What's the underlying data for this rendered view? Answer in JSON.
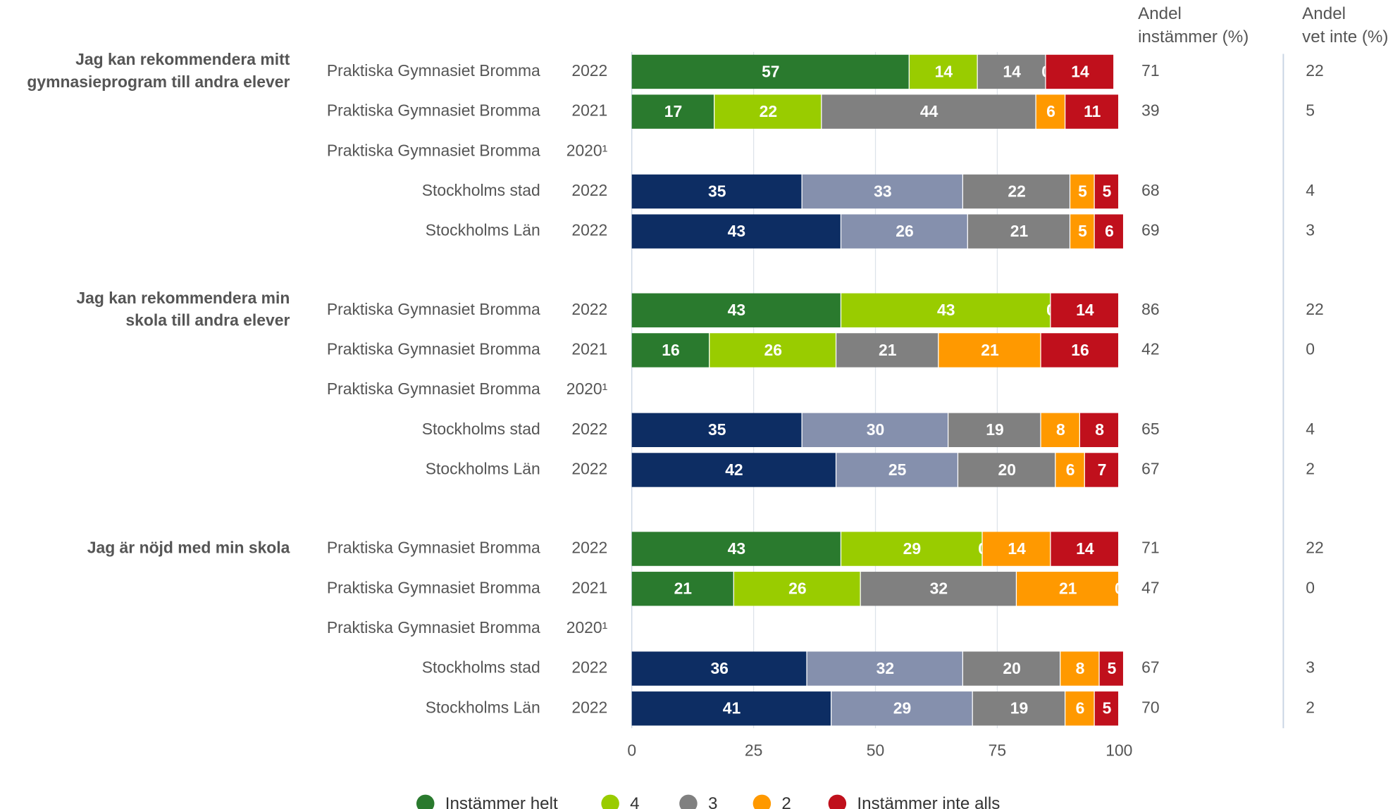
{
  "chart_data": {
    "type": "stacked_barh",
    "groups": [
      [
        "Jag kan rekommendera mitt",
        "gymnasieprogram till andra elever"
      ],
      [
        "Jag kan rekommendera min",
        "skola till andra elever"
      ],
      [
        "Jag är nöjd med min skola"
      ]
    ],
    "rows": [
      {
        "label": "Praktiska Gymnasiet Bromma",
        "year": "2022"
      },
      {
        "label": "Praktiska Gymnasiet Bromma",
        "year": "2021"
      },
      {
        "label": "Praktiska Gymnasiet Bromma",
        "year": "2020¹"
      },
      {
        "label": "Stockholms stad",
        "year": "2022"
      },
      {
        "label": "Stockholms Län",
        "year": "2022"
      },
      {
        "label": "Praktiska Gymnasiet Bromma",
        "year": "2022"
      },
      {
        "label": "Praktiska Gymnasiet Bromma",
        "year": "2021"
      },
      {
        "label": "Praktiska Gymnasiet Bromma",
        "year": "2020¹"
      },
      {
        "label": "Stockholms stad",
        "year": "2022"
      },
      {
        "label": "Stockholms Län",
        "year": "2022"
      },
      {
        "label": "Praktiska Gymnasiet Bromma",
        "year": "2022"
      },
      {
        "label": "Praktiska Gymnasiet Bromma",
        "year": "2021"
      },
      {
        "label": "Praktiska Gymnasiet Bromma",
        "year": "2020¹"
      },
      {
        "label": "Stockholms stad",
        "year": "2022"
      },
      {
        "label": "Stockholms Län",
        "year": "2022"
      }
    ],
    "series": [
      {
        "name": "Instämmer helt",
        "color": "#2a7a2e",
        "colors": [
          "#2a7a2e",
          "#2a7a2e",
          null,
          "#0d2d63",
          "#0d2d63",
          "#2a7a2e",
          "#2a7a2e",
          null,
          "#0d2d63",
          "#0d2d63",
          "#2a7a2e",
          "#2a7a2e",
          null,
          "#0d2d63",
          "#0d2d63"
        ],
        "values": [
          57,
          17,
          null,
          35,
          43,
          43,
          16,
          null,
          35,
          42,
          43,
          21,
          null,
          36,
          41
        ]
      },
      {
        "name": "4",
        "color": "#99cc00",
        "colors": [
          "#99cc00",
          "#99cc00",
          null,
          "#8590ad",
          "#8590ad",
          "#99cc00",
          "#99cc00",
          null,
          "#8590ad",
          "#8590ad",
          "#99cc00",
          "#99cc00",
          null,
          "#8590ad",
          "#8590ad"
        ],
        "values": [
          14,
          22,
          null,
          33,
          26,
          43,
          26,
          null,
          30,
          25,
          29,
          26,
          null,
          32,
          29
        ]
      },
      {
        "name": "3",
        "color": "#808080",
        "colors": [
          "#808080",
          "#808080",
          null,
          "#808080",
          "#808080",
          "#808080",
          "#808080",
          null,
          "#808080",
          "#808080",
          "#808080",
          "#808080",
          null,
          "#808080",
          "#808080"
        ],
        "values": [
          14,
          44,
          null,
          22,
          21,
          0,
          21,
          null,
          19,
          20,
          0,
          32,
          null,
          20,
          19
        ]
      },
      {
        "name": "2",
        "color": "#ff9900",
        "colors": [
          "#ff9900",
          "#ff9900",
          null,
          "#ff9900",
          "#ff9900",
          "#ff9900",
          "#ff9900",
          null,
          "#ff9900",
          "#ff9900",
          "#ff9900",
          "#ff9900",
          null,
          "#ff9900",
          "#ff9900"
        ],
        "values": [
          0,
          6,
          null,
          5,
          5,
          0,
          21,
          null,
          8,
          6,
          14,
          21,
          null,
          8,
          6
        ]
      },
      {
        "name": "Instämmer inte alls",
        "color": "#c0101c",
        "colors": [
          "#c0101c",
          "#c0101c",
          null,
          "#c0101c",
          "#c0101c",
          "#c0101c",
          "#c0101c",
          null,
          "#c0101c",
          "#c0101c",
          "#c0101c",
          "#c0101c",
          null,
          "#c0101c",
          "#c0101c"
        ],
        "values": [
          14,
          11,
          null,
          5,
          6,
          14,
          16,
          null,
          8,
          7,
          14,
          0,
          null,
          5,
          5
        ]
      }
    ],
    "columns": [
      {
        "header": [
          "Andel",
          "instämmer (%)"
        ],
        "values": [
          71,
          39,
          null,
          68,
          69,
          86,
          42,
          null,
          65,
          67,
          71,
          47,
          null,
          67,
          70
        ]
      },
      {
        "header": [
          "Andel",
          "vet inte (%)"
        ],
        "values": [
          22,
          5,
          null,
          4,
          3,
          22,
          0,
          null,
          4,
          2,
          22,
          0,
          null,
          3,
          2
        ]
      }
    ],
    "xlim": [
      0,
      100
    ],
    "xticks": [
      0,
      25,
      50,
      75,
      100
    ],
    "grid": true,
    "legend": "bottom"
  }
}
